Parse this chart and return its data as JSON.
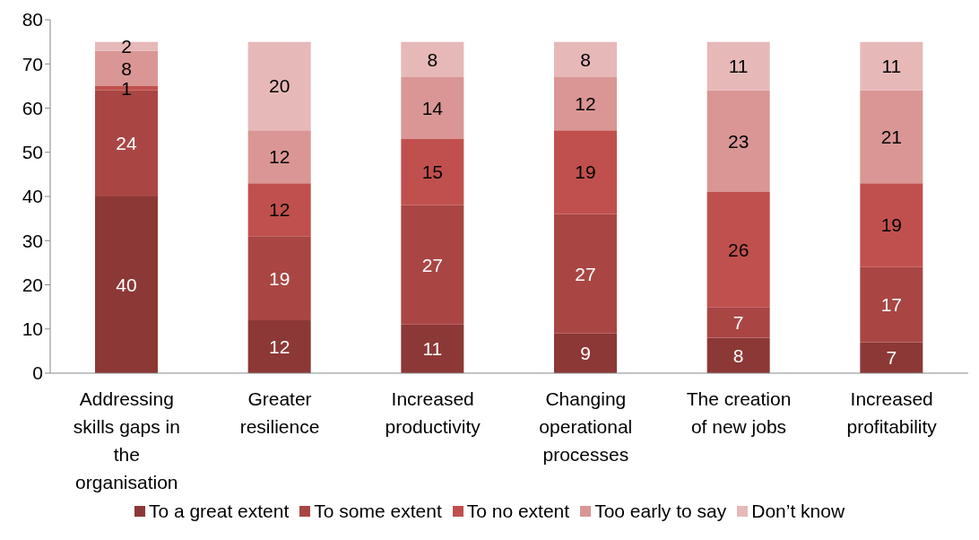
{
  "chart_data": {
    "type": "bar",
    "stacked": true,
    "categories": [
      "Addressing skills gaps in the organisation",
      "Greater resilience",
      "Increased productivity",
      "Changing operational processes",
      "The creation of new jobs",
      "Increased profitability"
    ],
    "series": [
      {
        "name": "To a great extent",
        "color": "#8c3836",
        "values": [
          40,
          12,
          11,
          9,
          8,
          7
        ]
      },
      {
        "name": "To some extent",
        "color": "#a94644",
        "values": [
          24,
          19,
          27,
          27,
          7,
          17
        ]
      },
      {
        "name": "To no extent",
        "color": "#c0504d",
        "values": [
          1,
          12,
          15,
          19,
          26,
          19
        ]
      },
      {
        "name": "Too early to say",
        "color": "#d99694",
        "values": [
          8,
          12,
          14,
          12,
          23,
          21
        ]
      },
      {
        "name": "Don’t know",
        "color": "#e6b9b8",
        "values": [
          2,
          20,
          8,
          8,
          11,
          11
        ]
      }
    ],
    "ylim": [
      0,
      80
    ],
    "yticks": [
      0,
      10,
      20,
      30,
      40,
      50,
      60,
      70,
      80
    ],
    "legend": "bottom",
    "data_labels": true
  }
}
